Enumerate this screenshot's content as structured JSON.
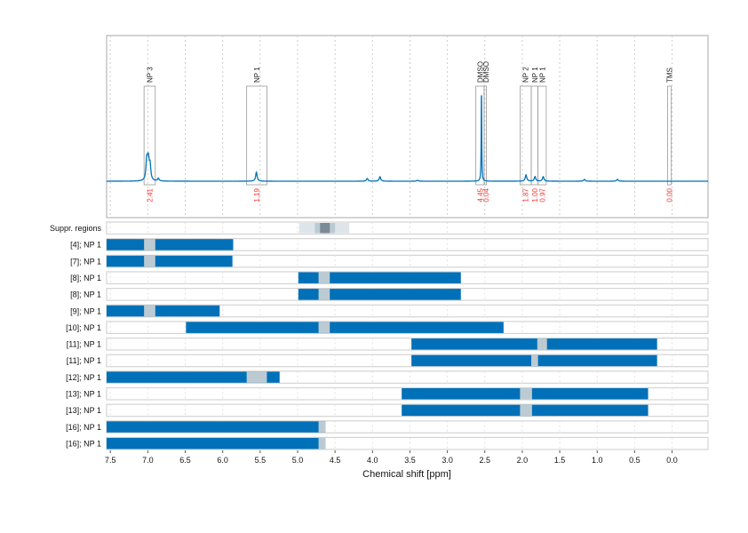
{
  "chart_data": {
    "type": "line",
    "xlabel": "Chemical shift [ppm]",
    "xlim": [
      7.55,
      -0.48
    ],
    "x_reversed": true,
    "xticks": [
      7.5,
      7.0,
      6.5,
      6.0,
      5.5,
      5.0,
      4.5,
      4.0,
      3.5,
      3.0,
      2.5,
      2.0,
      1.5,
      1.0,
      0.5,
      0.0
    ],
    "grid": "vertical dotted",
    "colors": {
      "spectrum": "#0070b8",
      "bar": "#0070b8",
      "excluded": "#bccbd3",
      "integral_label": "#ff3333",
      "box": "#aaaaaa"
    },
    "spectrum_peaks": [
      {
        "ppm": 7.015,
        "intensity": 0.2
      },
      {
        "ppm": 7.0,
        "intensity": 0.12
      },
      {
        "ppm": 6.99,
        "intensity": 0.15
      },
      {
        "ppm": 6.97,
        "intensity": 0.16
      },
      {
        "ppm": 6.86,
        "intensity": 0.03
      },
      {
        "ppm": 5.55,
        "intensity": 0.1
      },
      {
        "ppm": 4.07,
        "intensity": 0.03
      },
      {
        "ppm": 3.9,
        "intensity": 0.05
      },
      {
        "ppm": 3.4,
        "intensity": 0.01
      },
      {
        "ppm": 2.545,
        "intensity": 1.0
      },
      {
        "ppm": 1.95,
        "intensity": 0.07
      },
      {
        "ppm": 1.83,
        "intensity": 0.05
      },
      {
        "ppm": 1.72,
        "intensity": 0.05
      },
      {
        "ppm": 1.17,
        "intensity": 0.02
      },
      {
        "ppm": 0.73,
        "intensity": 0.02
      }
    ],
    "integration_regions": [
      {
        "label": "NP 3",
        "from": 7.05,
        "to": 6.9,
        "integral": "2.41"
      },
      {
        "label": "NP 1",
        "from": 5.68,
        "to": 5.41,
        "integral": "1.19"
      },
      {
        "label": "DMSO",
        "from": 2.62,
        "to": 2.51,
        "integral": "4.45"
      },
      {
        "label": "DMSO",
        "from": 2.51,
        "to": 2.48,
        "integral": "0.04"
      },
      {
        "label": "NP 2",
        "from": 2.03,
        "to": 1.88,
        "integral": "1.87"
      },
      {
        "label": "NP 1",
        "from": 1.88,
        "to": 1.79,
        "integral": "1.00"
      },
      {
        "label": "NP 1",
        "from": 1.79,
        "to": 1.68,
        "integral": "0.97"
      },
      {
        "label": "TMS",
        "from": 0.06,
        "to": 0.01,
        "integral": "0.00"
      }
    ],
    "suppressed_regions": {
      "label": "Suppr. regions",
      "bands": [
        {
          "from": 4.98,
          "to": 4.31,
          "level": 1
        },
        {
          "from": 4.77,
          "to": 4.5,
          "level": 2
        },
        {
          "from": 4.7,
          "to": 4.57,
          "level": 3
        }
      ]
    },
    "range_rows": [
      {
        "label": "[4]; NP 1",
        "from": 7.55,
        "to": 5.86,
        "excluded": [
          7.05,
          6.9
        ]
      },
      {
        "label": "[7]; NP 1",
        "from": 7.55,
        "to": 5.87,
        "excluded": [
          7.05,
          6.9
        ]
      },
      {
        "label": "[8]; NP 1",
        "from": 4.99,
        "to": 2.82,
        "excluded": [
          4.72,
          4.57
        ]
      },
      {
        "label": "[8]; NP 1",
        "from": 4.99,
        "to": 2.82,
        "excluded": [
          4.72,
          4.57
        ]
      },
      {
        "label": "[9]; NP 1",
        "from": 7.55,
        "to": 6.04,
        "excluded": [
          7.05,
          6.9
        ]
      },
      {
        "label": "[10]; NP 1",
        "from": 6.49,
        "to": 2.25,
        "excluded": [
          4.72,
          4.57
        ]
      },
      {
        "label": "[11]; NP 1",
        "from": 3.48,
        "to": 0.2,
        "excluded": [
          1.8,
          1.67
        ]
      },
      {
        "label": "[11]; NP 1",
        "from": 3.48,
        "to": 0.2,
        "excluded": [
          1.88,
          1.79
        ]
      },
      {
        "label": "[12]; NP 1",
        "from": 7.55,
        "to": 5.24,
        "excluded": [
          5.68,
          5.41
        ]
      },
      {
        "label": "[13]; NP 1",
        "from": 3.61,
        "to": 0.32,
        "excluded": [
          2.03,
          1.87
        ]
      },
      {
        "label": "[13]; NP 1",
        "from": 3.61,
        "to": 0.32,
        "excluded": [
          2.03,
          1.87
        ]
      },
      {
        "label": "[16]; NP 1",
        "from": 7.55,
        "to": 4.63,
        "excluded": [
          4.72,
          4.63
        ]
      },
      {
        "label": "[16]; NP 1",
        "from": 7.55,
        "to": 4.63,
        "excluded": [
          4.72,
          4.63
        ]
      }
    ]
  }
}
